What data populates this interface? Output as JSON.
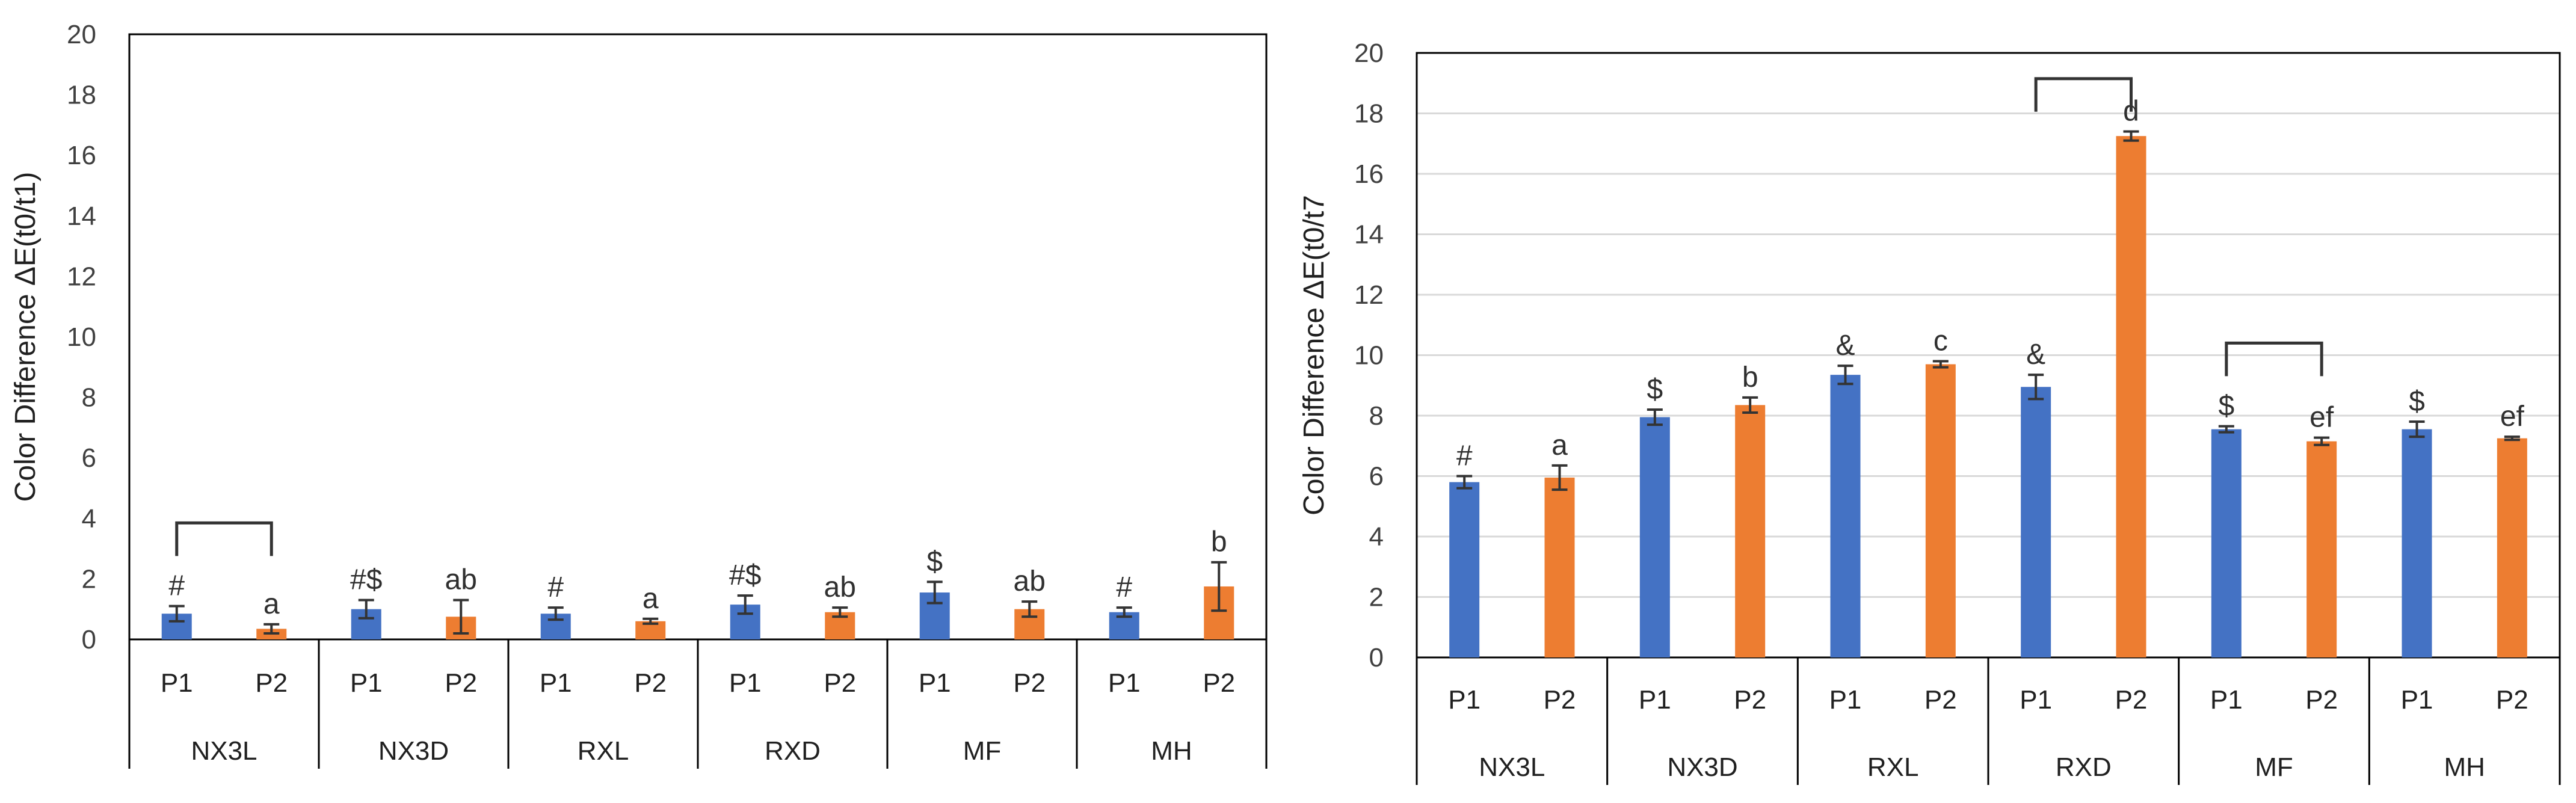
{
  "colors": {
    "P1": "#4472C4",
    "P2": "#ED7D31",
    "grid": "#D9D9D9",
    "axis": "#000000"
  },
  "chart_data": [
    {
      "type": "bar",
      "title": "",
      "ylabel": "Color Difference ΔE(t0/t1)",
      "ylim": [
        0,
        20
      ],
      "yticks": [
        0,
        2,
        4,
        6,
        8,
        10,
        12,
        14,
        16,
        18,
        20
      ],
      "grid": false,
      "groups": [
        "NX3L",
        "NX3D",
        "RXL",
        "RXD",
        "MF",
        "MH"
      ],
      "subcategories": [
        "P1",
        "P2"
      ],
      "series": [
        {
          "name": "P1",
          "values": [
            0.85,
            1.0,
            0.85,
            1.15,
            1.55,
            0.9
          ],
          "errors": [
            0.25,
            0.3,
            0.2,
            0.3,
            0.35,
            0.15
          ],
          "labels": [
            "#",
            "#$",
            "#",
            "#$",
            "$",
            "#"
          ]
        },
        {
          "name": "P2",
          "values": [
            0.35,
            0.75,
            0.6,
            0.9,
            1.0,
            1.75
          ],
          "errors": [
            0.15,
            0.55,
            0.08,
            0.15,
            0.25,
            0.8
          ],
          "labels": [
            "a",
            "ab",
            "a",
            "ab",
            "ab",
            "b"
          ]
        }
      ],
      "brackets": [
        {
          "group": 0,
          "y": 3.85
        }
      ]
    },
    {
      "type": "bar",
      "title": "",
      "ylabel": "Color Difference ΔE(t0/t7",
      "ylim": [
        0,
        20
      ],
      "yticks": [
        0,
        2,
        4,
        6,
        8,
        10,
        12,
        14,
        16,
        18,
        20
      ],
      "grid": true,
      "groups": [
        "NX3L",
        "NX3D",
        "RXL",
        "RXD",
        "MF",
        "MH"
      ],
      "subcategories": [
        "P1",
        "P2"
      ],
      "series": [
        {
          "name": "P1",
          "values": [
            5.8,
            7.95,
            9.35,
            8.95,
            7.55,
            7.55
          ],
          "errors": [
            0.2,
            0.25,
            0.3,
            0.4,
            0.1,
            0.25
          ],
          "labels": [
            "#",
            "$",
            "&",
            "&",
            "$",
            "$"
          ]
        },
        {
          "name": "P2",
          "values": [
            5.95,
            8.35,
            9.7,
            17.25,
            7.15,
            7.25
          ],
          "errors": [
            0.4,
            0.25,
            0.1,
            0.15,
            0.12,
            0.05
          ],
          "labels": [
            "a",
            "b",
            "c",
            "d",
            "ef",
            "ef"
          ]
        }
      ],
      "brackets": [
        {
          "group": 3,
          "y": 19.15
        },
        {
          "group": 4,
          "y": 10.4
        }
      ]
    }
  ]
}
